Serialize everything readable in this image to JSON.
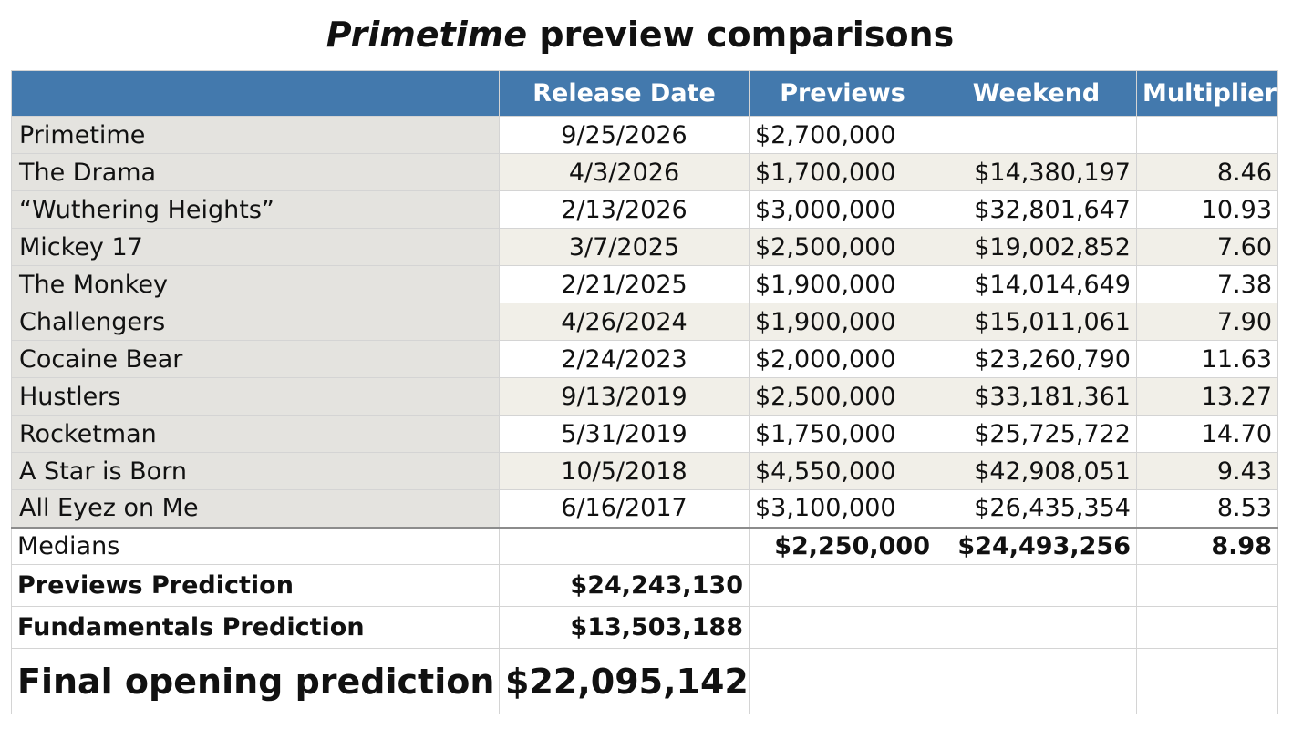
{
  "title": {
    "italic": "Primetime",
    "rest": " preview comparisons"
  },
  "header": {
    "columns": [
      "",
      "Release Date",
      "Previews",
      "Weekend",
      "Multiplier"
    ]
  },
  "rows": [
    {
      "film": "Primetime",
      "release_date": "9/25/2026",
      "previews": "$2,700,000",
      "weekend": "",
      "multiplier": ""
    },
    {
      "film": "The Drama",
      "release_date": "4/3/2026",
      "previews": "$1,700,000",
      "weekend": "$14,380,197",
      "multiplier": "8.46"
    },
    {
      "film": "“Wuthering Heights”",
      "release_date": "2/13/2026",
      "previews": "$3,000,000",
      "weekend": "$32,801,647",
      "multiplier": "10.93"
    },
    {
      "film": "Mickey 17",
      "release_date": "3/7/2025",
      "previews": "$2,500,000",
      "weekend": "$19,002,852",
      "multiplier": "7.60"
    },
    {
      "film": "The Monkey",
      "release_date": "2/21/2025",
      "previews": "$1,900,000",
      "weekend": "$14,014,649",
      "multiplier": "7.38"
    },
    {
      "film": "Challengers",
      "release_date": "4/26/2024",
      "previews": "$1,900,000",
      "weekend": "$15,011,061",
      "multiplier": "7.90"
    },
    {
      "film": "Cocaine Bear",
      "release_date": "2/24/2023",
      "previews": "$2,000,000",
      "weekend": "$23,260,790",
      "multiplier": "11.63"
    },
    {
      "film": "Hustlers",
      "release_date": "9/13/2019",
      "previews": "$2,500,000",
      "weekend": "$33,181,361",
      "multiplier": "13.27"
    },
    {
      "film": "Rocketman",
      "release_date": "5/31/2019",
      "previews": "$1,750,000",
      "weekend": "$25,725,722",
      "multiplier": "14.70"
    },
    {
      "film": "A Star is Born",
      "release_date": "10/5/2018",
      "previews": "$4,550,000",
      "weekend": "$42,908,051",
      "multiplier": "9.43"
    },
    {
      "film": "All Eyez on Me",
      "release_date": "6/16/2017",
      "previews": "$3,100,000",
      "weekend": "$26,435,354",
      "multiplier": "8.53"
    }
  ],
  "medians": {
    "label": "Medians",
    "previews": "$2,250,000",
    "weekend": "$24,493,256",
    "multiplier": "8.98"
  },
  "predictions": [
    {
      "label": "Previews Prediction",
      "value": "$24,243,130"
    },
    {
      "label": "Fundamentals Prediction",
      "value": "$13,503,188"
    }
  ],
  "final": {
    "label": "Final opening prediction",
    "value": "$22,095,142"
  },
  "colors": {
    "header_bg": "#4379ad",
    "name_col_bg": "#e4e3df",
    "stripe_bg": "#f1efe8"
  }
}
